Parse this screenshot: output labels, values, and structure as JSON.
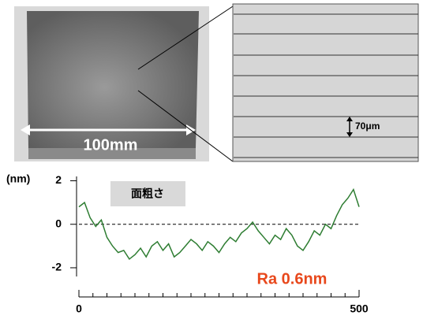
{
  "chart_data": {
    "type": "line",
    "photo_label": "100mm",
    "zoom_label": "70μm",
    "y_unit": "(nm)",
    "legend_box": "面粗さ",
    "annotation": "Ra 0.6nm",
    "x": [
      0,
      10,
      20,
      30,
      40,
      50,
      60,
      70,
      80,
      90,
      100,
      110,
      120,
      130,
      140,
      150,
      160,
      170,
      180,
      190,
      200,
      210,
      220,
      230,
      240,
      250,
      260,
      270,
      280,
      290,
      300,
      310,
      320,
      330,
      340,
      350,
      360,
      370,
      380,
      390,
      400,
      410,
      420,
      430,
      440,
      450,
      460,
      470,
      480,
      490,
      500
    ],
    "series": [
      {
        "color": "#2e7d32",
        "values": [
          0.8,
          1.0,
          0.3,
          -0.1,
          0.2,
          -0.6,
          -1.0,
          -1.3,
          -1.2,
          -1.6,
          -1.4,
          -1.1,
          -1.5,
          -1.0,
          -0.8,
          -1.2,
          -0.9,
          -1.5,
          -1.3,
          -1.0,
          -0.7,
          -0.9,
          -1.2,
          -0.8,
          -1.0,
          -1.3,
          -0.9,
          -0.6,
          -0.8,
          -0.4,
          -0.2,
          0.1,
          -0.3,
          -0.6,
          -0.9,
          -0.5,
          -0.7,
          -0.2,
          -0.5,
          -1.0,
          -1.2,
          -0.8,
          -0.3,
          -0.5,
          0.0,
          -0.2,
          0.4,
          0.9,
          1.2,
          1.6,
          0.8
        ]
      }
    ],
    "xlim": [
      0,
      500
    ],
    "xticks": [
      0,
      500
    ],
    "xminorticks": [
      25,
      50,
      75,
      100,
      125,
      150,
      175,
      200,
      225,
      250,
      275,
      300,
      325,
      350,
      375,
      400,
      425,
      450,
      475
    ],
    "ylim": [
      -2.4,
      2.2
    ],
    "yticks": [
      -2,
      0,
      2
    ],
    "reference_line": 0,
    "annotation_color": "#e8481c"
  }
}
